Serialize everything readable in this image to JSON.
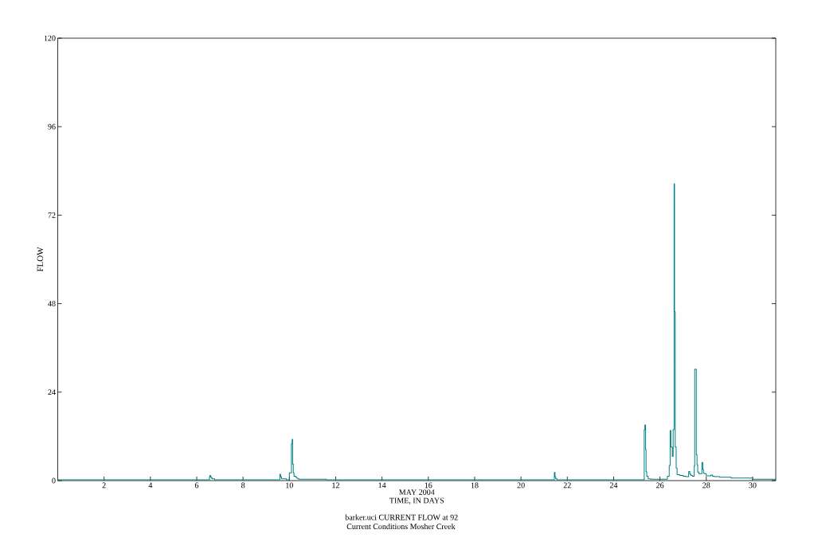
{
  "chart_data": {
    "type": "step",
    "title": "barker.uci CURRENT FLOW at 92",
    "subtitle": "Current Conditions Mosher Creek",
    "xlabel": "TIME, IN DAYS",
    "ylabel": "FLOW",
    "annotations": [
      "MAY 2004"
    ],
    "x": [
      0,
      6.55,
      6.57,
      6.6,
      6.63,
      6.67,
      6.77,
      9.59,
      9.62,
      9.66,
      9.87,
      10.0,
      10.09,
      10.12,
      10.14,
      10.17,
      10.2,
      10.27,
      10.33,
      10.4,
      11.6,
      21.44,
      21.47,
      21.5,
      21.56,
      25.32,
      25.35,
      25.38,
      25.4,
      25.43,
      25.49,
      25.6,
      26.32,
      26.4,
      26.44,
      26.47,
      26.53,
      26.57,
      26.61,
      26.63,
      26.66,
      26.7,
      26.74,
      26.85,
      27.0,
      27.12,
      27.24,
      27.29,
      27.34,
      27.4,
      27.48,
      27.5,
      27.57,
      27.6,
      27.63,
      27.68,
      27.81,
      27.85,
      27.88,
      27.92,
      28.0,
      28.2,
      28.27,
      28.35,
      28.58,
      29.07,
      30.0,
      31
    ],
    "series": [
      {
        "color": "#008080",
        "values": [
          0.2,
          1.0,
          1.4,
          1.0,
          0.7,
          0.5,
          0.2,
          1.7,
          1.0,
          0.5,
          0.2,
          2.1,
          10.1,
          11.2,
          4.5,
          2.1,
          1.2,
          0.9,
          0.6,
          0.4,
          0.2,
          2.2,
          1.0,
          0.5,
          0.2,
          13.8,
          15.1,
          8.4,
          2.4,
          1.2,
          0.5,
          0.4,
          1.2,
          4.1,
          13.6,
          9.1,
          6.6,
          13.8,
          80.5,
          45.8,
          9.1,
          3.4,
          1.6,
          1.4,
          1.2,
          1.1,
          2.5,
          1.7,
          1.4,
          1.2,
          4.0,
          30.2,
          7.0,
          4.3,
          2.3,
          1.9,
          4.9,
          3.0,
          2.0,
          1.9,
          1.3,
          1.5,
          1.2,
          1.1,
          0.9,
          0.7,
          0.4,
          0.4
        ]
      }
    ],
    "xlim": [
      0,
      31
    ],
    "ylim": [
      0,
      120
    ],
    "xticks": [
      2,
      4,
      6,
      8,
      10,
      12,
      14,
      16,
      18,
      20,
      22,
      24,
      26,
      28,
      30
    ],
    "yticks": [
      0,
      24,
      48,
      72,
      96,
      120
    ]
  }
}
